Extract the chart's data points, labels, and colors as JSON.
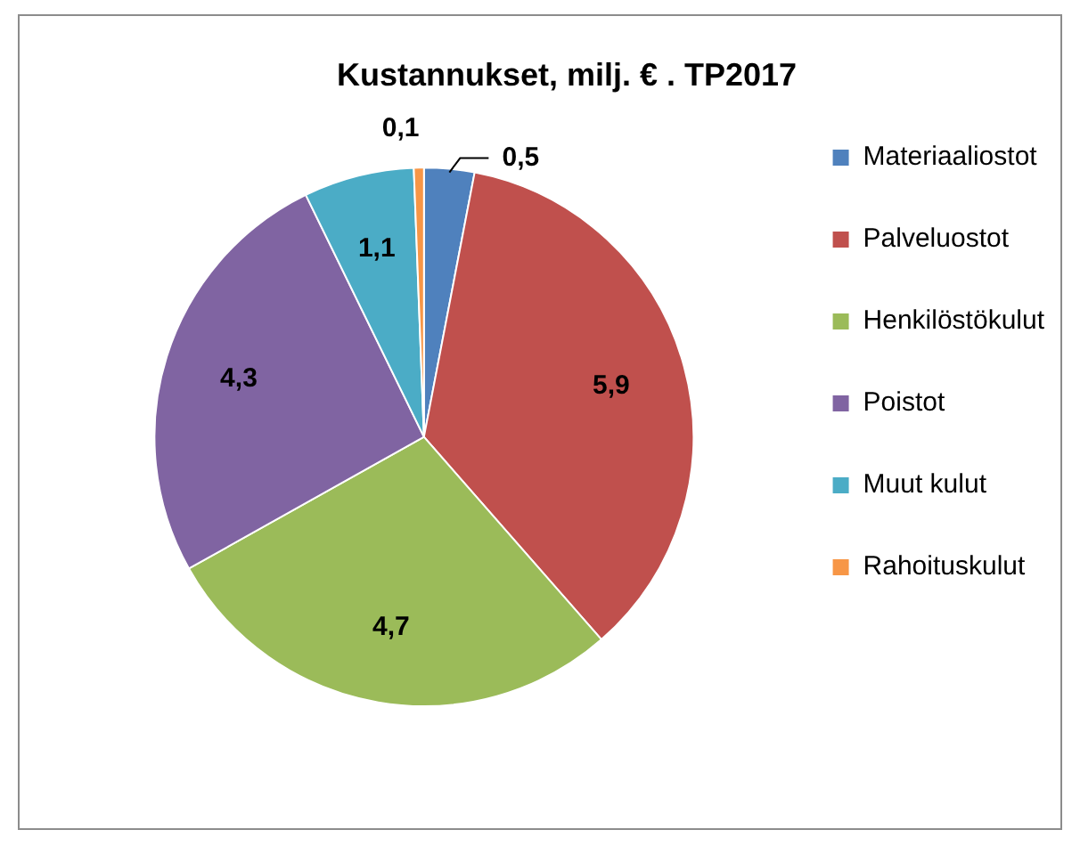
{
  "chart_data": {
    "type": "pie",
    "title": "Kustannukset, milj. € . TP2017",
    "categories": [
      "Materiaaliostot",
      "Palveluostot",
      "Henkilöstökulut",
      "Poistot",
      "Muut kulut",
      "Rahoituskulut"
    ],
    "values": [
      0.5,
      5.9,
      4.7,
      4.3,
      1.1,
      0.1
    ],
    "colors": [
      "#4f81bd",
      "#c0504d",
      "#9bbb59",
      "#8064a2",
      "#4bacc6",
      "#f79646"
    ],
    "value_labels": [
      "0,5",
      "5,9",
      "4,7",
      "4,3",
      "1,1",
      "0,1"
    ],
    "legend": "right"
  }
}
